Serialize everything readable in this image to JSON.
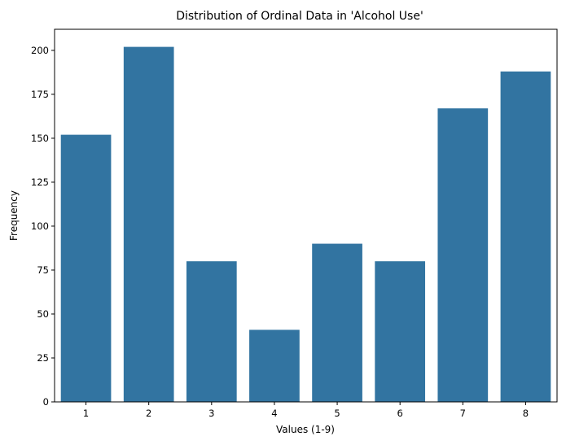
{
  "chart_data": {
    "type": "bar",
    "title": "Distribution of Ordinal Data in 'Alcohol Use'",
    "xlabel": "Values (1-9)",
    "ylabel": "Frequency",
    "categories": [
      "1",
      "2",
      "3",
      "4",
      "5",
      "6",
      "7",
      "8"
    ],
    "values": [
      152,
      202,
      80,
      41,
      90,
      80,
      167,
      188
    ],
    "ylim": [
      0,
      212
    ],
    "yticks": [
      0,
      25,
      50,
      75,
      100,
      125,
      150,
      175,
      200
    ],
    "bar_color": "#3274a1",
    "grid": false,
    "legend": "none"
  }
}
